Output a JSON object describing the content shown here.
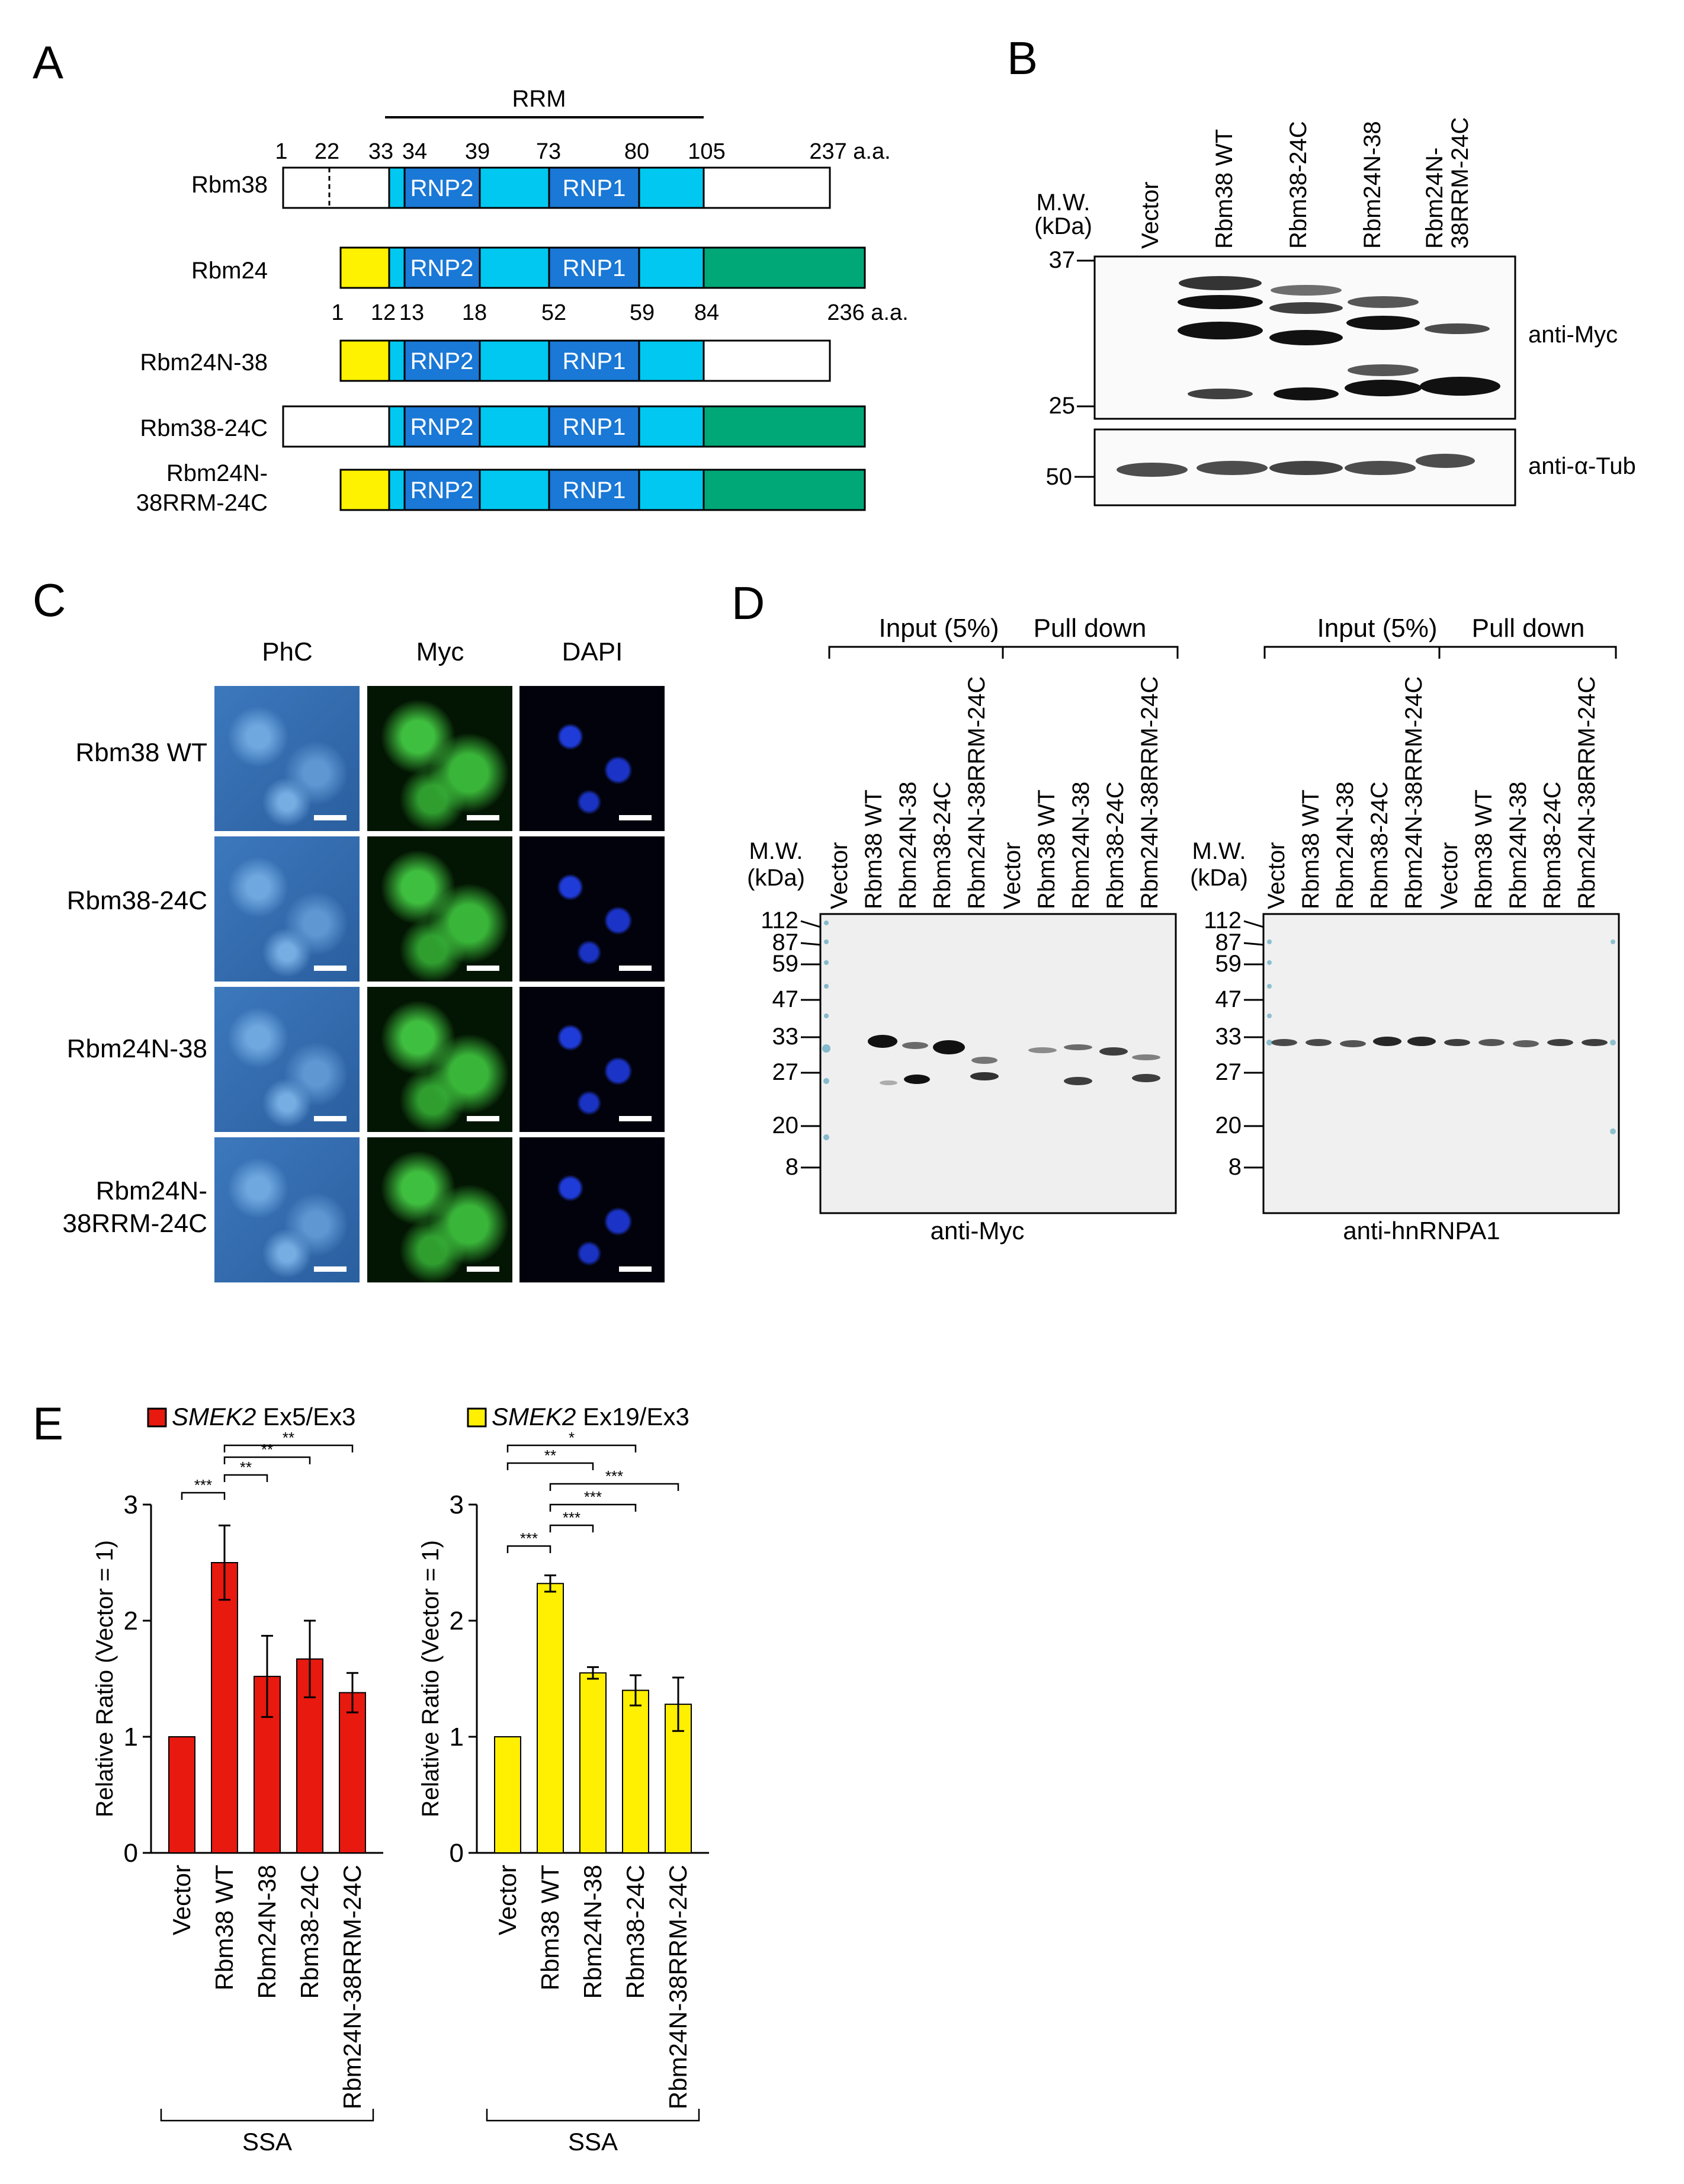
{
  "panel_letters": {
    "a": "A",
    "b": "B",
    "c": "C",
    "d": "D",
    "e": "E"
  },
  "panel_a": {
    "rrm_label": "RRM",
    "rbm38_positions": [
      "1",
      "22",
      "33",
      "34",
      "39",
      "73",
      "80",
      "105",
      "237 a.a."
    ],
    "rbm24_positions": [
      "1",
      "12",
      "13",
      "18",
      "52",
      "59",
      "84",
      "236 a.a."
    ],
    "constructs": [
      "Rbm38",
      "Rbm24",
      "Rbm24N-38",
      "Rbm38-24C",
      "Rbm24N-",
      "38RRM-24C"
    ],
    "rnp2": "RNP2",
    "rnp1": "RNP1",
    "colors": {
      "rrm": "#00c8f0",
      "rnp": "#1a78d6",
      "nterm24": "#fff200",
      "cterm24": "#00a878"
    }
  },
  "panel_b": {
    "mw_title": [
      "M.W.",
      "(kDa)"
    ],
    "lanes": [
      "Vector",
      "Rbm38 WT",
      "Rbm38-24C",
      "Rbm24N-38",
      "Rbm24N-",
      "38RRM-24C"
    ],
    "markers_top": [
      "37",
      "25"
    ],
    "marker_bottom": "50",
    "blot_labels": [
      "anti-Myc",
      "anti-α-Tub"
    ]
  },
  "panel_c": {
    "columns": [
      "PhC",
      "Myc",
      "DAPI"
    ],
    "rows": [
      "Rbm38 WT",
      "Rbm38-24C",
      "Rbm24N-38",
      "Rbm24N-",
      "38RRM-24C"
    ]
  },
  "panel_d": {
    "group_labels": [
      "Input (5%)",
      "Pull down"
    ],
    "mw_title": [
      "M.W.",
      "(kDa)"
    ],
    "lanes": [
      "Vector",
      "Rbm38 WT",
      "Rbm24N-38",
      "Rbm38-24C",
      "Rbm24N-38RRM-24C"
    ],
    "markers": [
      "112",
      "87",
      "59",
      "47",
      "33",
      "27",
      "20",
      "8"
    ],
    "blot_labels": [
      "anti-Myc",
      "anti-hnRNPA1"
    ]
  },
  "panel_e": {
    "ylabel": "Relative Ratio (Vector = 1)",
    "group_label": "SSA",
    "stars": [
      "***",
      "**",
      "*"
    ]
  },
  "chart_data": [
    {
      "type": "bar",
      "title_italic": "SMEK2",
      "title_rest": " Ex5/Ex3",
      "categories": [
        "Vector",
        "Rbm38 WT",
        "Rbm24N-38",
        "Rbm38-24C",
        "Rbm24N-38RRM-24C"
      ],
      "values": [
        1.0,
        2.5,
        1.52,
        1.67,
        1.38
      ],
      "errors": [
        0,
        0.32,
        0.35,
        0.33,
        0.17
      ],
      "ylim": [
        0,
        3
      ],
      "yticks": [
        "0",
        "1",
        "2",
        "3"
      ],
      "color": "#e8190f",
      "significance": [
        {
          "from": 0,
          "to": 1,
          "label": "***"
        },
        {
          "from": 1,
          "to": 2,
          "label": "**"
        },
        {
          "from": 1,
          "to": 3,
          "label": "**"
        },
        {
          "from": 1,
          "to": 4,
          "label": "**"
        }
      ]
    },
    {
      "type": "bar",
      "title_italic": "SMEK2",
      "title_rest": " Ex19/Ex3",
      "categories": [
        "Vector",
        "Rbm38 WT",
        "Rbm24N-38",
        "Rbm38-24C",
        "Rbm24N-38RRM-24C"
      ],
      "values": [
        1.0,
        2.32,
        1.55,
        1.4,
        1.28
      ],
      "errors": [
        0,
        0.07,
        0.05,
        0.13,
        0.23
      ],
      "ylim": [
        0,
        3
      ],
      "yticks": [
        "0",
        "1",
        "2",
        "3"
      ],
      "color": "#ffef00",
      "significance": [
        {
          "from": 0,
          "to": 1,
          "label": "***"
        },
        {
          "from": 1,
          "to": 2,
          "label": "***"
        },
        {
          "from": 1,
          "to": 3,
          "label": "***"
        },
        {
          "from": 1,
          "to": 4,
          "label": "***"
        },
        {
          "from": 0,
          "to": 2,
          "label": "**"
        },
        {
          "from": 0,
          "to": 3,
          "label": "*"
        }
      ]
    }
  ]
}
